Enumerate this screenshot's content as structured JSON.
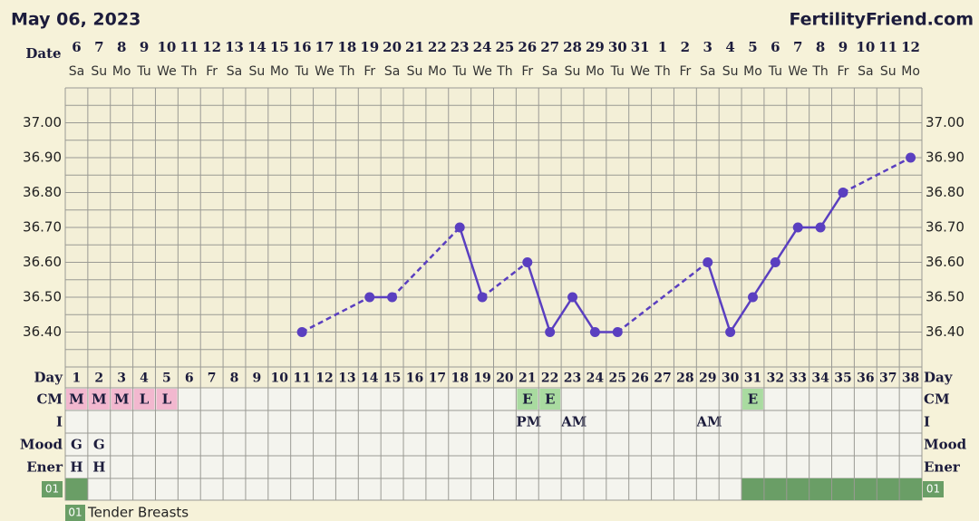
{
  "header": {
    "date": "May 06, 2023",
    "site": "FertilityFriend.com"
  },
  "chart_data": {
    "type": "line",
    "date_label": "Date",
    "dates": [
      "6",
      "7",
      "8",
      "9",
      "10",
      "11",
      "12",
      "13",
      "14",
      "15",
      "16",
      "17",
      "18",
      "19",
      "20",
      "21",
      "22",
      "23",
      "24",
      "25",
      "26",
      "27",
      "28",
      "29",
      "30",
      "31",
      "1",
      "2",
      "3",
      "4",
      "5",
      "6",
      "7",
      "8",
      "9",
      "10",
      "11",
      "12"
    ],
    "weekdays": [
      "Sa",
      "Su",
      "Mo",
      "Tu",
      "We",
      "Th",
      "Fr",
      "Sa",
      "Su",
      "Mo",
      "Tu",
      "We",
      "Th",
      "Fr",
      "Sa",
      "Su",
      "Mo",
      "Tu",
      "We",
      "Th",
      "Fr",
      "Sa",
      "Su",
      "Mo",
      "Tu",
      "We",
      "Th",
      "Fr",
      "Sa",
      "Su",
      "Mo",
      "Tu",
      "We",
      "Th",
      "Fr",
      "Sa",
      "Su",
      "Mo"
    ],
    "ylim": [
      36.3,
      37.1
    ],
    "yticks": [
      {
        "value": 36.4,
        "label": "36.40"
      },
      {
        "value": 36.5,
        "label": "36.50"
      },
      {
        "value": 36.6,
        "label": "36.60"
      },
      {
        "value": 36.7,
        "label": "36.70"
      },
      {
        "value": 36.8,
        "label": "36.80"
      },
      {
        "value": 36.9,
        "label": "36.90"
      },
      {
        "value": 37,
        "label": "37.00"
      }
    ],
    "ygrid": [
      36.3,
      36.35,
      36.4,
      36.45,
      36.5,
      36.55,
      36.6,
      36.65,
      36.7,
      36.75,
      36.8,
      36.85,
      36.9,
      36.95,
      37,
      37.05,
      37.1
    ],
    "color": "#5a3fc0",
    "values": [
      null,
      null,
      null,
      null,
      null,
      null,
      null,
      null,
      null,
      null,
      36.4,
      null,
      null,
      36.5,
      36.5,
      null,
      null,
      36.7,
      36.5,
      null,
      36.6,
      36.4,
      36.5,
      36.4,
      36.4,
      null,
      null,
      null,
      36.6,
      36.4,
      36.5,
      36.6,
      36.7,
      36.7,
      36.8,
      null,
      null,
      36.9
    ]
  },
  "rows": {
    "day": {
      "label": "Day",
      "values": [
        1,
        2,
        3,
        4,
        5,
        6,
        7,
        8,
        9,
        10,
        11,
        12,
        13,
        14,
        15,
        16,
        17,
        18,
        19,
        20,
        21,
        22,
        23,
        24,
        25,
        26,
        27,
        28,
        29,
        30,
        31,
        32,
        33,
        34,
        35,
        36,
        37,
        38
      ]
    },
    "cm": {
      "label": "CM",
      "colors": {
        "M": "#f2b8cf",
        "L": "#f2b8cf",
        "E": "#a9dba0"
      },
      "values": [
        "M",
        "M",
        "M",
        "L",
        "L",
        null,
        null,
        null,
        null,
        null,
        null,
        null,
        null,
        null,
        null,
        null,
        null,
        null,
        null,
        null,
        "E",
        "E",
        null,
        null,
        null,
        null,
        null,
        null,
        null,
        null,
        "E",
        null,
        null,
        null,
        null,
        null,
        null,
        null
      ]
    },
    "intercourse": {
      "label": "I",
      "values": [
        null,
        null,
        null,
        null,
        null,
        null,
        null,
        null,
        null,
        null,
        null,
        null,
        null,
        null,
        null,
        null,
        null,
        null,
        null,
        null,
        "PM",
        null,
        "AM",
        null,
        null,
        null,
        null,
        null,
        "AM",
        null,
        null,
        null,
        null,
        null,
        null,
        null,
        null,
        null
      ]
    },
    "mood": {
      "label": "Mood",
      "values": [
        "G",
        "G",
        null,
        null,
        null,
        null,
        null,
        null,
        null,
        null,
        null,
        null,
        null,
        null,
        null,
        null,
        null,
        null,
        null,
        null,
        null,
        null,
        null,
        null,
        null,
        null,
        null,
        null,
        null,
        null,
        null,
        null,
        null,
        null,
        null,
        null,
        null,
        null
      ]
    },
    "energy": {
      "label": "Ener",
      "values": [
        "H",
        "H",
        null,
        null,
        null,
        null,
        null,
        null,
        null,
        null,
        null,
        null,
        null,
        null,
        null,
        null,
        null,
        null,
        null,
        null,
        null,
        null,
        null,
        null,
        null,
        null,
        null,
        null,
        null,
        null,
        null,
        null,
        null,
        null,
        null,
        null,
        null,
        null
      ]
    },
    "symptom": {
      "label": "01",
      "color": "#6a9e66",
      "marked": [
        true,
        false,
        false,
        false,
        false,
        false,
        false,
        false,
        false,
        false,
        false,
        false,
        false,
        false,
        false,
        false,
        false,
        false,
        false,
        false,
        false,
        false,
        false,
        false,
        false,
        false,
        false,
        false,
        false,
        false,
        true,
        true,
        true,
        true,
        true,
        true,
        true,
        true
      ]
    }
  },
  "legend": {
    "code": "01",
    "text": "Tender Breasts"
  }
}
